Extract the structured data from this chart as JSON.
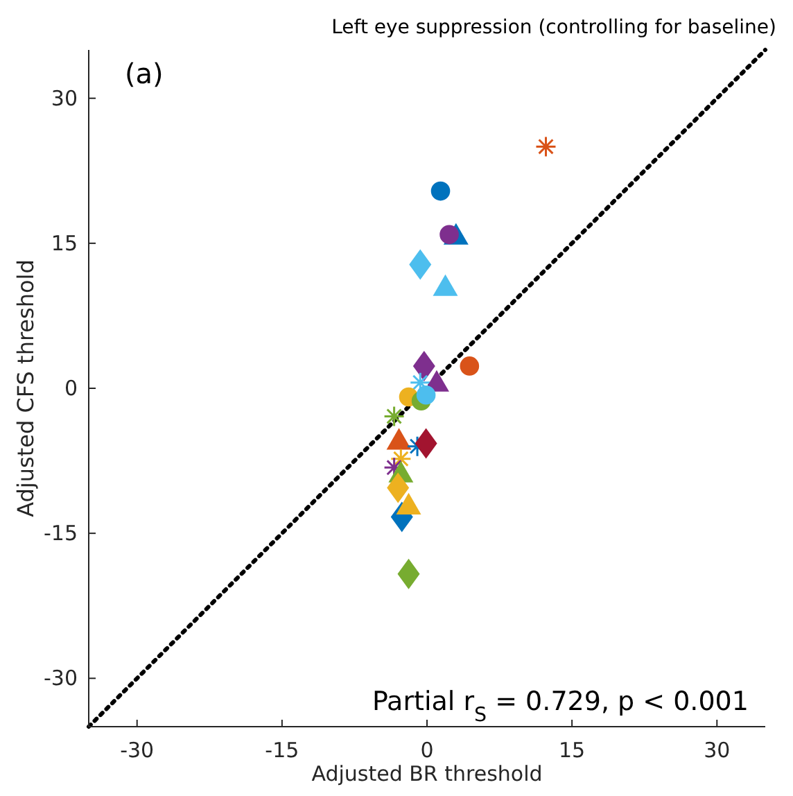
{
  "chart_data": {
    "type": "scatter",
    "title": "Left eye suppression (controlling for baseline)",
    "xlabel": "Adjusted BR threshold",
    "ylabel": "Adjusted CFS threshold",
    "annotations": [
      "(a)",
      "Partial r$_{S}$ = 0.729, p < 0.001"
    ],
    "xlim": [
      -35,
      35
    ],
    "ylim": [
      -35,
      35
    ],
    "xticks": [
      -30,
      -15,
      0,
      15,
      30
    ],
    "yticks": [
      -30,
      -15,
      0,
      15,
      30
    ],
    "grid": false,
    "series": [
      {
        "type": "line",
        "x": [
          -35,
          35
        ],
        "values": [
          -35,
          35
        ],
        "color": "#000000",
        "line_style": "dotted",
        "marker": "none"
      },
      {
        "x": [
          1.4
        ],
        "values": [
          20.4
        ],
        "color": "#0072bd",
        "marker": "circle"
      },
      {
        "x": [
          3.0
        ],
        "values": [
          15.6
        ],
        "color": "#0072bd",
        "marker": "triangle"
      },
      {
        "x": [
          2.3
        ],
        "values": [
          15.9
        ],
        "color": "#7e2f8e",
        "marker": "circle"
      },
      {
        "x": [
          -0.7
        ],
        "values": [
          12.8
        ],
        "color": "#4dbeee",
        "marker": "diamond"
      },
      {
        "x": [
          1.9
        ],
        "values": [
          10.3
        ],
        "color": "#4dbeee",
        "marker": "triangle"
      },
      {
        "x": [
          12.3
        ],
        "values": [
          25.0
        ],
        "color": "#d95319",
        "marker": "cross"
      },
      {
        "x": [
          -0.3
        ],
        "values": [
          2.3
        ],
        "color": "#7e2f8e",
        "marker": "diamond"
      },
      {
        "x": [
          4.4
        ],
        "values": [
          2.3
        ],
        "color": "#d95319",
        "marker": "circle"
      },
      {
        "x": [
          -0.7
        ],
        "values": [
          0.6
        ],
        "color": "#4dbeee",
        "marker": "cross"
      },
      {
        "x": [
          1.0
        ],
        "values": [
          0.4
        ],
        "color": "#7e2f8e",
        "marker": "triangle"
      },
      {
        "x": [
          -1.9
        ],
        "values": [
          -0.9
        ],
        "color": "#edb120",
        "marker": "circle"
      },
      {
        "x": [
          -0.6
        ],
        "values": [
          -1.3
        ],
        "color": "#77ac30",
        "marker": "circle"
      },
      {
        "x": [
          -0.1
        ],
        "values": [
          -0.7
        ],
        "color": "#4dbeee",
        "marker": "circle"
      },
      {
        "x": [
          -3.4
        ],
        "values": [
          -2.9
        ],
        "color": "#77ac30",
        "marker": "cross"
      },
      {
        "x": [
          -2.9
        ],
        "values": [
          -5.6
        ],
        "color": "#d95319",
        "marker": "triangle"
      },
      {
        "x": [
          -1.0
        ],
        "values": [
          -6.0
        ],
        "color": "#0072bd",
        "marker": "cross"
      },
      {
        "x": [
          -0.1
        ],
        "values": [
          -5.7
        ],
        "color": "#a2142f",
        "marker": "diamond"
      },
      {
        "x": [
          -2.7
        ],
        "values": [
          -7.3
        ],
        "color": "#edb120",
        "marker": "cross"
      },
      {
        "x": [
          -3.4
        ],
        "values": [
          -8.2
        ],
        "color": "#7e2f8e",
        "marker": "cross"
      },
      {
        "x": [
          -2.7
        ],
        "values": [
          -9.0
        ],
        "color": "#77ac30",
        "marker": "triangle"
      },
      {
        "x": [
          -3.0
        ],
        "values": [
          -10.3
        ],
        "color": "#edb120",
        "marker": "diamond"
      },
      {
        "x": [
          -2.6
        ],
        "values": [
          -13.3
        ],
        "color": "#0072bd",
        "marker": "diamond"
      },
      {
        "x": [
          -1.9
        ],
        "values": [
          -12.3
        ],
        "color": "#edb120",
        "marker": "triangle"
      },
      {
        "x": [
          -1.9
        ],
        "values": [
          -19.2
        ],
        "color": "#77ac30",
        "marker": "diamond"
      }
    ]
  }
}
